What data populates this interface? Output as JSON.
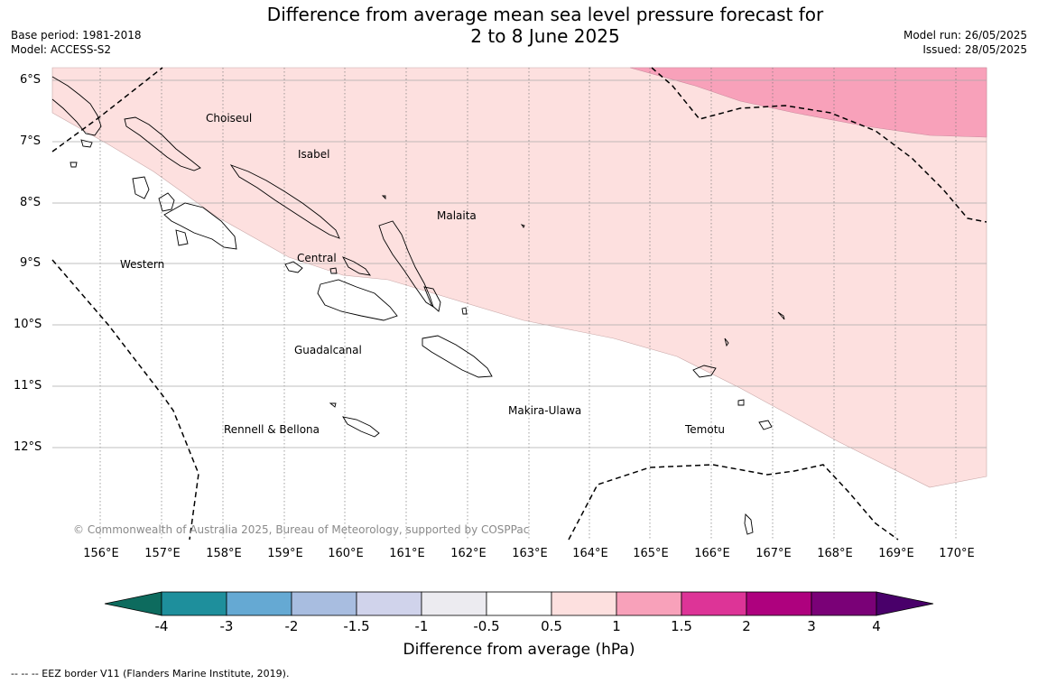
{
  "title_line1": "Difference from average mean sea level pressure forecast for",
  "title_line2": "2 to 8 June 2025",
  "base_period": "Base period: 1981-2018",
  "model": "Model: ACCESS-S2",
  "model_run": "Model run: 26/05/2025",
  "issued": "Issued: 28/05/2025",
  "latitude_labels": [
    "6°S",
    "7°S",
    "8°S",
    "9°S",
    "10°S",
    "11°S",
    "12°S"
  ],
  "longitude_labels": [
    "156°E",
    "157°E",
    "158°E",
    "159°E",
    "160°E",
    "161°E",
    "162°E",
    "163°E",
    "164°E",
    "165°E",
    "166°E",
    "167°E",
    "168°E",
    "169°E",
    "170°E"
  ],
  "regions": [
    "Choiseul",
    "Isabel",
    "Malaita",
    "Western",
    "Central",
    "Guadalcanal",
    "Makira-Ulawa",
    "Rennell & Bellona",
    "Temotu"
  ],
  "copyright": "© Commonwealth of Australia 2025, Bureau of Meteorology, supported by COSPPac",
  "legend": {
    "title": "Difference from average (hPa)",
    "ticks": [
      "-4",
      "-3",
      "-2",
      "-1.5",
      "-1",
      "-0.5",
      "0.5",
      "1",
      "1.5",
      "2",
      "3",
      "4"
    ],
    "colors": [
      "#0d6b5e",
      "#1e8f9c",
      "#65a9d3",
      "#a8bde0",
      "#d0d3eb",
      "#ecebf0",
      "#ffffff",
      "#fde0df",
      "#f8a1ba",
      "#dd3497",
      "#ae017e",
      "#7a0177",
      "#49006a"
    ]
  },
  "footnote": "-- -- -- EEZ border V11 (Flanders Marine Institute, 2019)."
}
